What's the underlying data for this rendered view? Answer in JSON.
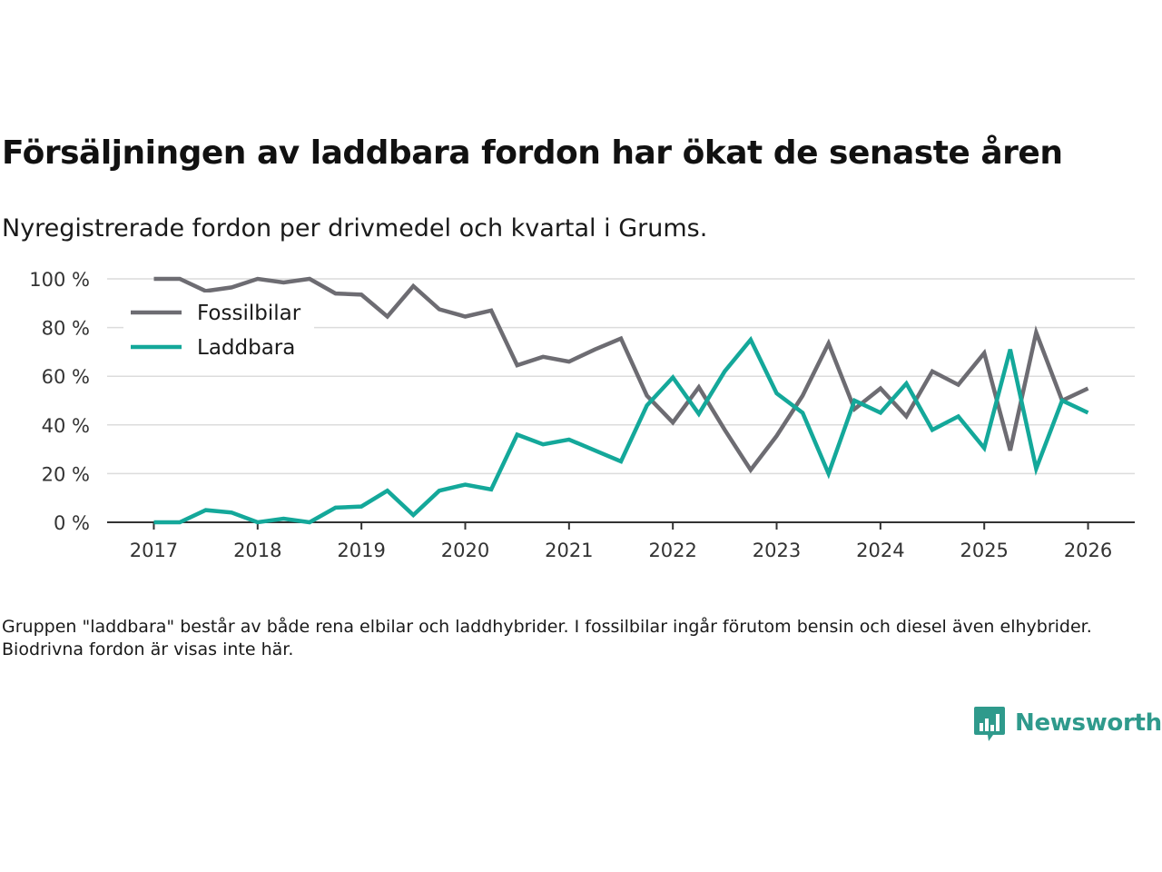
{
  "title": "Försäljningen av laddbara fordon har ökat de senaste åren",
  "subtitle": "Nyregistrerade fordon per drivmedel och kvartal i Grums.",
  "note": "Gruppen \"laddbara\" består av både rena elbilar och laddhybrider. I fossilbilar ingår förutom bensin och diesel även elhybrider. Biodrivna fordon är visas inte här.",
  "brand": {
    "name": "Newsworthy",
    "icon": "newsworthy-logo-icon",
    "color": "#2f9a8c"
  },
  "chart_data": {
    "type": "line",
    "title": "Försäljningen av laddbara fordon har ökat de senaste åren",
    "subtitle": "Nyregistrerade fordon per drivmedel och kvartal i Grums.",
    "xlabel": "",
    "ylabel": "",
    "x": [
      2017.0,
      2017.25,
      2017.5,
      2017.75,
      2018.0,
      2018.25,
      2018.5,
      2018.75,
      2019.0,
      2019.25,
      2019.5,
      2019.75,
      2020.0,
      2020.25,
      2020.5,
      2020.75,
      2021.0,
      2021.25,
      2021.5,
      2021.75,
      2022.0,
      2022.25,
      2022.5,
      2022.75,
      2023.0,
      2023.25,
      2023.5,
      2023.75,
      2024.0,
      2024.25,
      2024.5,
      2024.75,
      2025.0,
      2025.25,
      2025.5,
      2025.75,
      2026.0
    ],
    "xlim": [
      2016.55,
      2026.45
    ],
    "ylim": [
      0,
      100
    ],
    "x_ticks": [
      2017,
      2018,
      2019,
      2020,
      2021,
      2022,
      2023,
      2024,
      2025,
      2026
    ],
    "y_ticks": [
      0,
      20,
      40,
      60,
      80,
      100
    ],
    "y_tick_labels": [
      "0 %",
      "20 %",
      "40 %",
      "60 %",
      "80 %",
      "100 %"
    ],
    "grid": true,
    "legend_position": "top-left",
    "series": [
      {
        "name": "Fossilbilar",
        "color": "#6d6c72",
        "values": [
          100,
          100,
          95,
          96.5,
          100,
          98.5,
          100,
          94,
          93.5,
          84.5,
          97,
          87.5,
          84.5,
          87,
          64.5,
          68,
          66,
          71,
          75.5,
          52,
          41,
          55.5,
          38,
          21.5,
          35.5,
          52,
          73.5,
          46.5,
          55,
          43.5,
          62,
          56.5,
          69.5,
          29.5,
          78,
          50,
          55
        ]
      },
      {
        "name": "Laddbara",
        "color": "#14a89a",
        "values": [
          0,
          0,
          5,
          4,
          0,
          1.5,
          0,
          6,
          6.5,
          13,
          3,
          13,
          15.5,
          13.5,
          36,
          32,
          34,
          29.5,
          25,
          48,
          59.5,
          44.5,
          62,
          75,
          53,
          45,
          20,
          50,
          45,
          57,
          38,
          43.5,
          30.5,
          71,
          22,
          50,
          45
        ]
      }
    ]
  }
}
